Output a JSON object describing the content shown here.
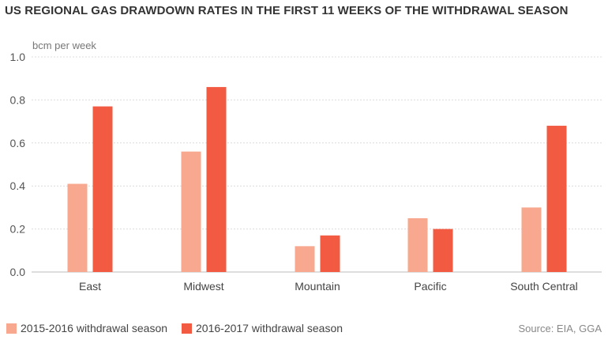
{
  "title": "US REGIONAL GAS DRAWDOWN RATES IN THE FIRST 11 WEEKS OF THE WITHDRAWAL SEASON",
  "unit_label": "bcm per week",
  "source": "Source: EIA, GGA",
  "colors": {
    "series_2015_2016": "#f7a88e",
    "series_2016_2017": "#f25a42"
  },
  "chart_data": {
    "type": "bar",
    "categories": [
      "East",
      "Midwest",
      "Mountain",
      "Pacific",
      "South Central"
    ],
    "series": [
      {
        "name": "2015-2016 withdrawal season",
        "values": [
          0.41,
          0.56,
          0.12,
          0.25,
          0.3
        ]
      },
      {
        "name": "2016-2017 withdrawal season",
        "values": [
          0.77,
          0.86,
          0.17,
          0.2,
          0.68
        ]
      }
    ],
    "ylabel": "bcm per week",
    "ylim": [
      0,
      1.0
    ],
    "yticks": [
      "0.0",
      "0.2",
      "0.4",
      "0.6",
      "0.8",
      "1.0"
    ],
    "grid": true,
    "legend_position": "bottom-left"
  }
}
